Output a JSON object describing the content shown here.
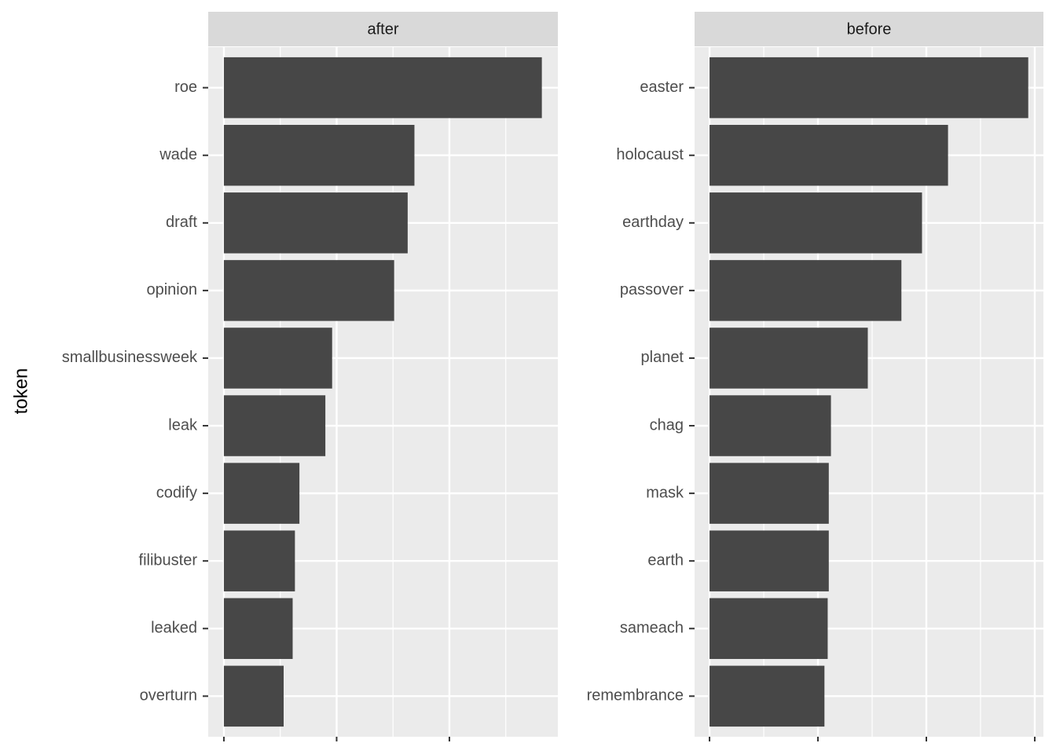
{
  "chart_data": [
    {
      "type": "bar",
      "orientation": "horizontal",
      "title": "after",
      "ylabel": "token",
      "color": "#474747",
      "grid": true,
      "categories": [
        "roe",
        "wade",
        "draft",
        "opinion",
        "smallbusinessweek",
        "leak",
        "codify",
        "filibuster",
        "leaked",
        "overturn"
      ],
      "values": [
        2.82,
        1.69,
        1.63,
        1.51,
        0.96,
        0.9,
        0.67,
        0.63,
        0.61,
        0.53
      ],
      "xlim": [
        -0.139,
        2.962
      ],
      "xticks": [
        0,
        1,
        2
      ],
      "x_minor_ticks": [
        0.5,
        1.5,
        2.5
      ]
    },
    {
      "type": "bar",
      "orientation": "horizontal",
      "title": "before",
      "color": "#474747",
      "grid": true,
      "categories": [
        "easter",
        "holocaust",
        "earthday",
        "passover",
        "planet",
        "chag",
        "mask",
        "earth",
        "sameach",
        "remembrance"
      ],
      "values": [
        2.94,
        2.2,
        1.96,
        1.77,
        1.46,
        1.12,
        1.1,
        1.1,
        1.09,
        1.06
      ],
      "xlim": [
        -0.138,
        3.08
      ],
      "xticks": [
        0,
        1,
        2,
        3
      ],
      "x_minor_ticks": [
        0.5,
        1.5,
        2.5
      ]
    }
  ]
}
